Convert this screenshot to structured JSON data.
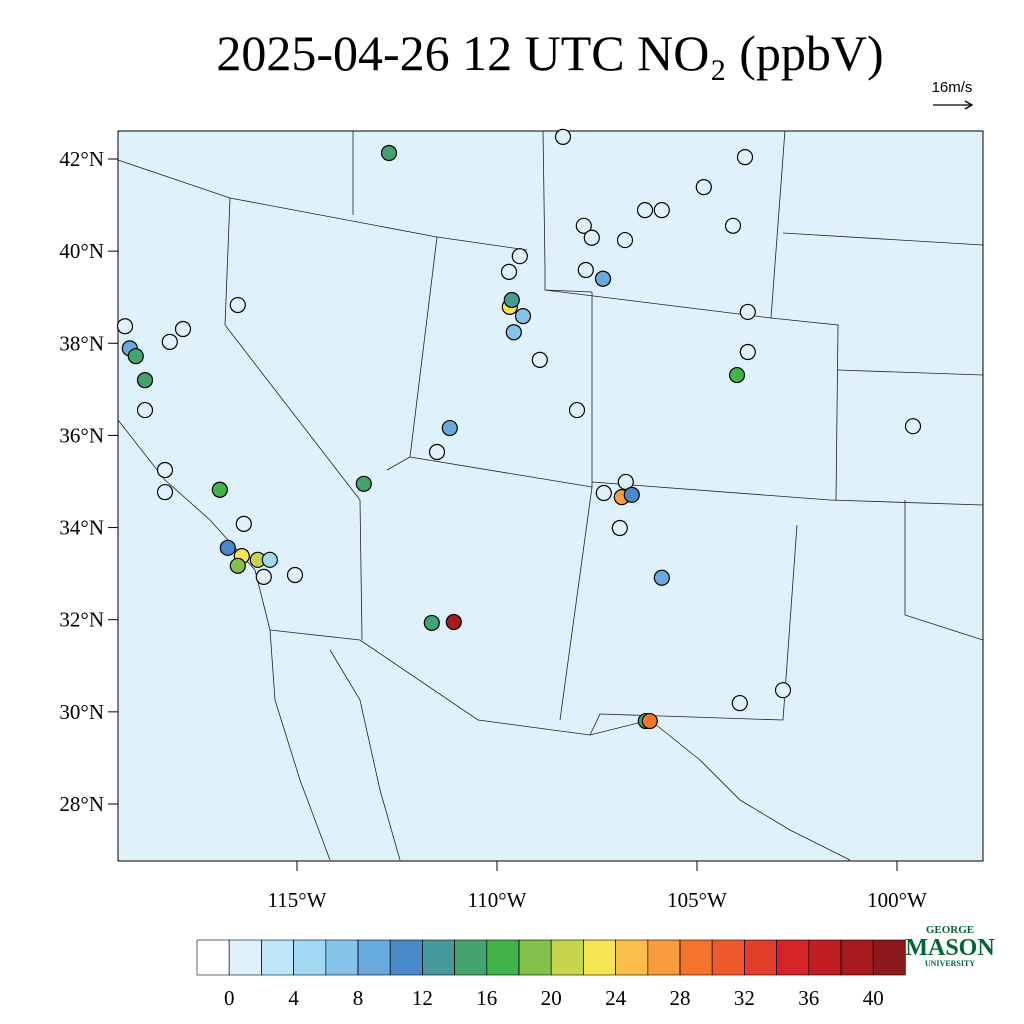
{
  "chart_data": {
    "type": "station-map",
    "title": "2025-04-26 12 UTC NO₂ (ppbV)",
    "wind_reference": "16m/s",
    "lat_ticks": [
      {
        "value": 42,
        "label": "42°N"
      },
      {
        "value": 40,
        "label": "40°N"
      },
      {
        "value": 38,
        "label": "38°N"
      },
      {
        "value": 36,
        "label": "36°N"
      },
      {
        "value": 34,
        "label": "34°N"
      },
      {
        "value": 32,
        "label": "32°N"
      },
      {
        "value": 30,
        "label": "30°N"
      },
      {
        "value": 28,
        "label": "28°N"
      }
    ],
    "lon_ticks": [
      {
        "value": -115,
        "label": "115°W"
      },
      {
        "value": -110,
        "label": "110°W"
      },
      {
        "value": -105,
        "label": "105°W"
      },
      {
        "value": -100,
        "label": "100°W"
      }
    ],
    "colorbar": {
      "levels": [
        0,
        2,
        4,
        6,
        8,
        10,
        12,
        14,
        16,
        18,
        20,
        22,
        24,
        26,
        28,
        30,
        32,
        34,
        36,
        38,
        40
      ],
      "ticks": [
        0,
        4,
        8,
        12,
        16,
        20,
        24,
        28,
        32,
        36,
        40
      ],
      "colors": [
        "#ffffff",
        "#dff1fb",
        "#bfe6f8",
        "#a1d9f4",
        "#86c3ea",
        "#6aa9dc",
        "#4a89c9",
        "#469a9c",
        "#44a36c",
        "#42b24a",
        "#83c14c",
        "#c3d64e",
        "#f7e654",
        "#fbbe4b",
        "#f89c3e",
        "#f4742e",
        "#ef5a2c",
        "#e23d28",
        "#d42428",
        "#c11e24",
        "#a71b1f",
        "#8c1a1c"
      ]
    },
    "stations": {
      "lon": [
        -112.7,
        -119.3,
        -119.18,
        -119.03,
        -118.8,
        -118.8,
        -118.18,
        -117.85,
        -116.48,
        -118.3,
        -118.3,
        -116.93,
        -116.33,
        -116.73,
        -116.38,
        -115.98,
        -116.48,
        -115.68,
        -115.83,
        -115.05,
        -113.33,
        -111.5,
        -111.18,
        -111.63,
        -111.08,
        -109.68,
        -109.63,
        -109.35,
        -109.58,
        -109.43,
        -109.7,
        -108.35,
        -107.83,
        -107.63,
        -107.35,
        -107.78,
        -106.3,
        -106.8,
        -105.88,
        -104.83,
        -103.8,
        -104.1,
        -103.73,
        -103.73,
        -104.0,
        -108.93,
        -108.0,
        -99.6,
        -107.33,
        -106.78,
        -106.88,
        -106.63,
        -106.93,
        -105.88,
        -103.93,
        -102.85,
        -106.28,
        -106.18
      ],
      "lat": [
        42.13,
        38.37,
        37.89,
        37.72,
        37.2,
        36.55,
        38.03,
        38.31,
        38.83,
        35.25,
        34.77,
        34.82,
        34.08,
        33.56,
        33.38,
        33.3,
        33.17,
        33.3,
        32.93,
        32.97,
        34.95,
        35.64,
        36.16,
        31.93,
        31.95,
        38.79,
        38.94,
        38.59,
        38.24,
        39.89,
        39.55,
        42.48,
        40.55,
        40.29,
        39.4,
        39.59,
        40.89,
        40.24,
        40.89,
        41.39,
        42.04,
        40.55,
        38.68,
        37.81,
        37.31,
        37.64,
        36.55,
        36.2,
        34.75,
        34.99,
        34.66,
        34.71,
        33.99,
        32.91,
        30.19,
        30.47,
        29.8,
        29.8
      ],
      "values": [
        15,
        1,
        8,
        14,
        15,
        1,
        1,
        1,
        1,
        1,
        1,
        16,
        1,
        10,
        22,
        20,
        18,
        4,
        1,
        1,
        15,
        1,
        8,
        14,
        38,
        22,
        12,
        6,
        6,
        1,
        1,
        1,
        1,
        1,
        8,
        1,
        1,
        1,
        1,
        1,
        1,
        1,
        1,
        1,
        17,
        1,
        1,
        1,
        1,
        1,
        26,
        10,
        1,
        9,
        1,
        1,
        15,
        29
      ]
    },
    "logo": {
      "line1": "GEORGE",
      "line2": "MASON",
      "line3": "UNIVERSITY"
    }
  }
}
